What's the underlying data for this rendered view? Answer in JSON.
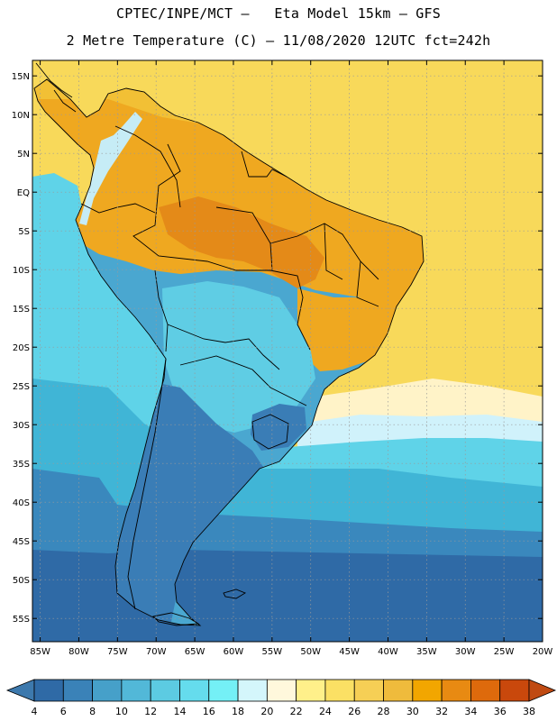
{
  "title_line1": "CPTEC/INPE/MCT –   Eta Model 15km – GFS",
  "title_line2": "2 Metre Temperature (C) – 11/08/2020 12UTC fct=242h",
  "map": {
    "lon_range": [
      -86,
      -20
    ],
    "lat_range": [
      -58,
      17
    ],
    "lat_ticks": [
      {
        "value": 15,
        "label": "15N"
      },
      {
        "value": 10,
        "label": "10N"
      },
      {
        "value": 5,
        "label": "5N"
      },
      {
        "value": 0,
        "label": "EQ"
      },
      {
        "value": -5,
        "label": "5S"
      },
      {
        "value": -10,
        "label": "10S"
      },
      {
        "value": -15,
        "label": "15S"
      },
      {
        "value": -20,
        "label": "20S"
      },
      {
        "value": -25,
        "label": "25S"
      },
      {
        "value": -30,
        "label": "30S"
      },
      {
        "value": -35,
        "label": "35S"
      },
      {
        "value": -40,
        "label": "40S"
      },
      {
        "value": -45,
        "label": "45S"
      },
      {
        "value": -50,
        "label": "50S"
      },
      {
        "value": -55,
        "label": "55S"
      }
    ],
    "lon_ticks": [
      {
        "value": -85,
        "label": "85W"
      },
      {
        "value": -80,
        "label": "80W"
      },
      {
        "value": -75,
        "label": "75W"
      },
      {
        "value": -70,
        "label": "70W"
      },
      {
        "value": -65,
        "label": "65W"
      },
      {
        "value": -60,
        "label": "60W"
      },
      {
        "value": -55,
        "label": "55W"
      },
      {
        "value": -50,
        "label": "50W"
      },
      {
        "value": -45,
        "label": "45W"
      },
      {
        "value": -40,
        "label": "40W"
      },
      {
        "value": -35,
        "label": "35W"
      },
      {
        "value": -30,
        "label": "30W"
      },
      {
        "value": -25,
        "label": "25W"
      },
      {
        "value": -20,
        "label": "20W"
      }
    ]
  },
  "colorbar": {
    "labels": [
      "4",
      "6",
      "8",
      "10",
      "12",
      "14",
      "16",
      "18",
      "20",
      "22",
      "24",
      "26",
      "28",
      "30",
      "32",
      "34",
      "36",
      "38"
    ],
    "low_color": "#3d79ad",
    "high_color": "#c04a12",
    "colors": [
      "#2f6aa6",
      "#3a82b8",
      "#46a0c9",
      "#52b8d8",
      "#5ccbe2",
      "#65dced",
      "#74f0f6",
      "#d4f6fb",
      "#fff8dc",
      "#fff08a",
      "#fbe064",
      "#f6cf55",
      "#efbb3c",
      "#f2a600",
      "#e88a12",
      "#de6a0c",
      "#c9480c"
    ]
  },
  "palette": {
    "ocean_warm": "#f8d95a",
    "ocean_pale": "#fff3c8",
    "ocean_lightblue": "#d0f2fb",
    "ocean_cyan": "#5fd3e8",
    "ocean_mid": "#40b5d6",
    "ocean_blue": "#3a88bd",
    "ocean_deep": "#2f6aa6",
    "land_orange": "#efa820",
    "land_dark_orange": "#e48a18",
    "land_gold": "#f2c035",
    "land_cyan": "#5fcde4",
    "land_mid": "#4aa7d0",
    "land_blue": "#3a7db6",
    "andes_light": "#c6ecf6",
    "border": "#000000",
    "grid": "#9a9a9a"
  }
}
